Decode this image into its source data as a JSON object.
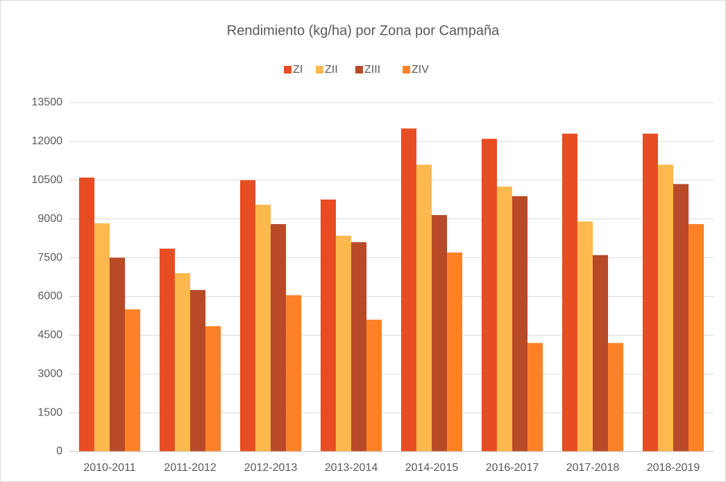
{
  "chart_data": {
    "type": "bar",
    "title": "Rendimiento (kg/ha) por Zona por Campaña",
    "categories": [
      "2010-2011",
      "2011-2012",
      "2012-2013",
      "2013-2014",
      "2014-2015",
      "2016-2017",
      "2017-2018",
      "2018-2019"
    ],
    "series": [
      {
        "name": "ZI",
        "color": "#e84c22",
        "values": [
          10600,
          7850,
          10500,
          9750,
          12500,
          12100,
          12300,
          12300
        ]
      },
      {
        "name": "ZII",
        "color": "#fdb94d",
        "values": [
          8830,
          6900,
          9550,
          8350,
          11100,
          10250,
          8900,
          11100
        ]
      },
      {
        "name": "ZIII",
        "color": "#b94a28",
        "values": [
          7500,
          6250,
          8800,
          8100,
          9150,
          9880,
          7600,
          10350
        ]
      },
      {
        "name": "ZIV",
        "color": "#fd8126",
        "values": [
          5500,
          4850,
          6050,
          5100,
          7700,
          4200,
          4200,
          8800
        ]
      }
    ],
    "ylim": [
      0,
      13500
    ],
    "yticks": [
      0,
      1500,
      3000,
      4500,
      6000,
      7500,
      9000,
      10500,
      12000,
      13500
    ],
    "grid": true,
    "legend": "top"
  }
}
